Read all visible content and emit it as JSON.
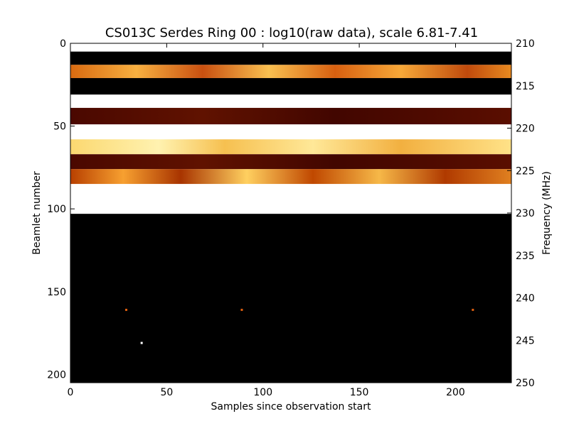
{
  "chart_data": {
    "type": "heatmap",
    "title": "CS013C Serdes Ring 00 : log10(raw data), scale 6.81-7.41",
    "xlabel": "Samples since observation start",
    "ylabel": "Beamlet number",
    "y2label": "Frequency (MHz)",
    "xlim": [
      0,
      229
    ],
    "ylim": [
      205,
      0
    ],
    "y2lim": [
      250,
      210
    ],
    "xticks": [
      0,
      50,
      100,
      150,
      200
    ],
    "yticks": [
      0,
      50,
      100,
      150,
      200
    ],
    "y2ticks": [
      210,
      215,
      220,
      225,
      230,
      235,
      240,
      245,
      250
    ],
    "colormap": "afmhot",
    "color_scale": [
      6.81,
      7.41
    ],
    "bands": [
      {
        "y0": 0,
        "y1": 5,
        "level": "white"
      },
      {
        "y0": 5,
        "y1": 13,
        "level": "black"
      },
      {
        "y0": 13,
        "y1": 21,
        "level": "bright-orange"
      },
      {
        "y0": 21,
        "y1": 31,
        "level": "black"
      },
      {
        "y0": 31,
        "y1": 39,
        "level": "white"
      },
      {
        "y0": 39,
        "y1": 49,
        "level": "dark-red"
      },
      {
        "y0": 49,
        "y1": 58,
        "level": "white"
      },
      {
        "y0": 58,
        "y1": 67,
        "level": "bright-yellow"
      },
      {
        "y0": 67,
        "y1": 76,
        "level": "dark-red"
      },
      {
        "y0": 76,
        "y1": 85,
        "level": "orange"
      },
      {
        "y0": 85,
        "y1": 103,
        "level": "white"
      },
      {
        "y0": 103,
        "y1": 205,
        "level": "black"
      }
    ],
    "hot_pixels": [
      {
        "x": 29,
        "y": 161
      },
      {
        "x": 89,
        "y": 161
      },
      {
        "x": 209,
        "y": 161
      },
      {
        "x": 37,
        "y": 181
      }
    ],
    "grid": false
  }
}
